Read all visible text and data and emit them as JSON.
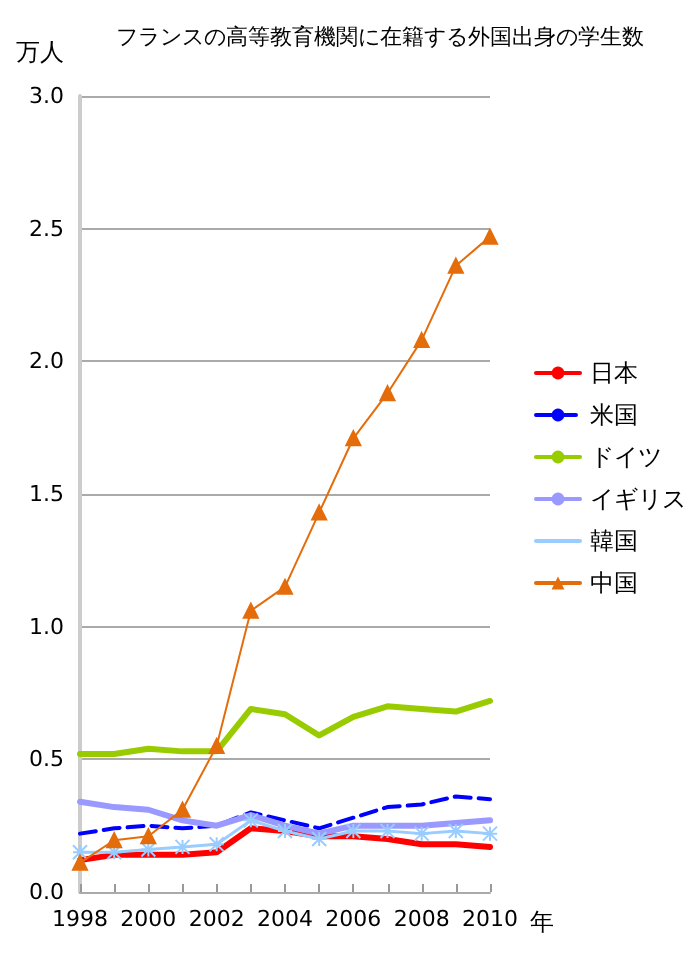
{
  "chart_data": {
    "type": "line",
    "title": "フランスの高等教育機関に在籍する外国出身の学生数",
    "ylabel": "万人",
    "xlabel": "年",
    "x": [
      1998,
      1999,
      2000,
      2001,
      2002,
      2003,
      2004,
      2005,
      2006,
      2007,
      2008,
      2009,
      2010
    ],
    "xlim": [
      1998,
      2010
    ],
    "xticks": [
      1998,
      {
        "value": 1999,
        "label": null
      },
      2000,
      {
        "value": 2001,
        "label": null
      },
      2002,
      {
        "value": 2003,
        "label": null
      },
      2004,
      {
        "value": 2005,
        "label": null
      },
      2006,
      {
        "value": 2007,
        "label": null
      },
      2008,
      {
        "value": 2009,
        "label": null
      },
      2010
    ],
    "ylim": [
      0,
      3.0
    ],
    "yticks": [
      {
        "value": 0,
        "label": "0.0"
      },
      {
        "value": 0.5,
        "label": "0.5"
      },
      {
        "value": 1,
        "label": "1.0"
      },
      {
        "value": 1.5,
        "label": "1.5"
      },
      {
        "value": 2,
        "label": "2.0"
      },
      {
        "value": 2.5,
        "label": "2.5"
      },
      {
        "value": 3,
        "label": "3.0"
      }
    ],
    "grid": "y",
    "legend": "right",
    "marker": "none",
    "series": [
      {
        "name": "日本",
        "color": "#ff0000",
        "values": [
          0.12,
          0.14,
          0.14,
          0.14,
          0.15,
          0.24,
          0.23,
          0.21,
          0.21,
          0.2,
          0.18,
          0.18,
          0.17
        ]
      },
      {
        "name": "米国",
        "color": "#0000ff",
        "line_style": "dashed",
        "values": [
          0.22,
          0.24,
          0.25,
          0.24,
          0.25,
          0.3,
          0.27,
          0.24,
          0.28,
          0.32,
          0.33,
          0.36,
          0.35
        ]
      },
      {
        "name": "ドイツ",
        "color": "#99cc00",
        "values": [
          0.52,
          0.52,
          0.54,
          0.53,
          0.53,
          0.69,
          0.67,
          0.59,
          0.66,
          0.7,
          0.69,
          0.68,
          0.72
        ]
      },
      {
        "name": "イギリス",
        "color": "#9999ff",
        "values": [
          0.34,
          0.32,
          0.31,
          0.27,
          0.25,
          0.29,
          0.25,
          0.22,
          0.25,
          0.25,
          0.25,
          0.26,
          0.27
        ]
      },
      {
        "name": "韓国",
        "color": "#99ccff",
        "marker": "cross",
        "values": [
          0.15,
          0.15,
          0.16,
          0.17,
          0.18,
          0.27,
          0.23,
          0.2,
          0.23,
          0.23,
          0.22,
          0.23,
          0.22
        ]
      },
      {
        "name": "中国",
        "color": "#e46c0a",
        "marker": "triangle",
        "values": [
          0.11,
          0.195,
          0.21,
          0.31,
          0.55,
          1.06,
          1.15,
          1.43,
          1.71,
          1.88,
          2.08,
          2.36,
          2.47
        ]
      }
    ]
  }
}
